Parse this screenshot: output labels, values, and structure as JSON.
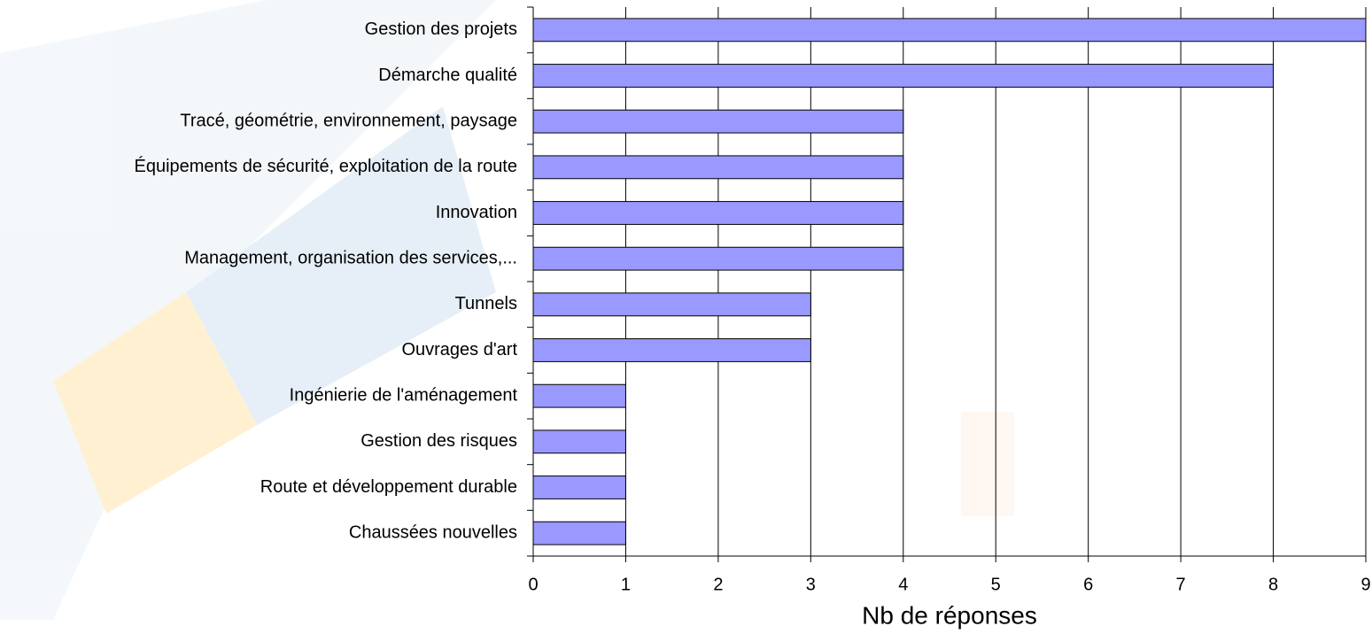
{
  "chart_data": {
    "type": "bar",
    "orientation": "horizontal",
    "categories": [
      "Gestion des projets",
      "Démarche qualité",
      "Tracé, géométrie, environnement, paysage",
      "Équipements de sécurité, exploitation de la route",
      "Innovation",
      "Management, organisation des services,...",
      "Tunnels",
      "Ouvrages d'art",
      "Ingénierie de l'aménagement",
      "Gestion des risques",
      "Route et développement durable",
      "Chaussées nouvelles"
    ],
    "values": [
      9,
      8,
      4,
      4,
      4,
      4,
      3,
      3,
      1,
      1,
      1,
      1
    ],
    "color": "#9999ff",
    "x_label": "Nb de réponses",
    "xlim": [
      0,
      9
    ],
    "xticks": [
      0,
      1,
      2,
      3,
      4,
      5,
      6,
      7,
      8,
      9
    ],
    "grid": true
  }
}
